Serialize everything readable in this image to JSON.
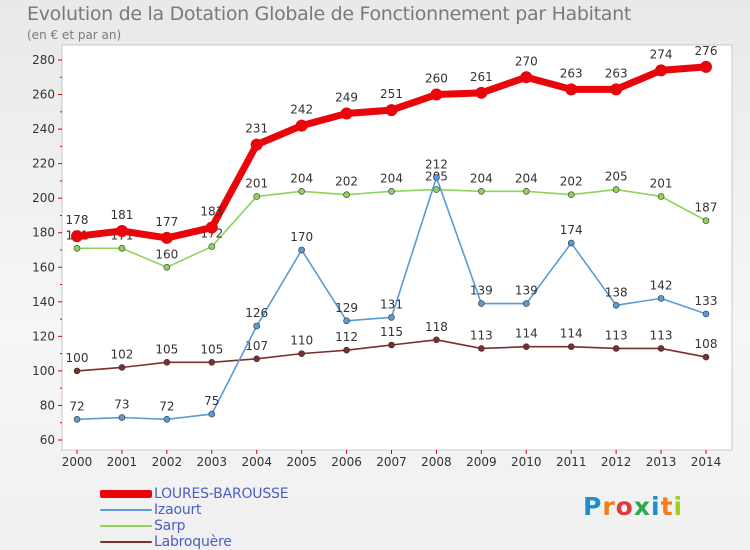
{
  "title": "Evolution de la Dotation Globale de Fonctionnement par Habitant",
  "subtitle": "(en € et par an)",
  "logo": {
    "letters": [
      "P",
      "r",
      "o",
      "x",
      "i",
      "t",
      "i"
    ],
    "colors": [
      "#1b8fd1",
      "#f07f1b",
      "#e23a3a",
      "#2aa84a",
      "#1b8fd1",
      "#f07f1b",
      "#9ad11b"
    ]
  },
  "chart_data": {
    "type": "line",
    "title": "Evolution de la Dotation Globale de Fonctionnement par Habitant",
    "ylabel": "(en € et par an)",
    "xlabel": "",
    "x": [
      "2000",
      "2001",
      "2002",
      "2003",
      "2004",
      "2005",
      "2006",
      "2007",
      "2008",
      "2009",
      "2010",
      "2011",
      "2012",
      "2013",
      "2014"
    ],
    "ylim": [
      60,
      280
    ],
    "yticks": [
      60,
      80,
      100,
      120,
      140,
      160,
      180,
      200,
      220,
      240,
      260,
      280
    ],
    "grid": false,
    "legend_position": "bottom-left",
    "series": [
      {
        "name": "Sarp",
        "color": "#8fd35a",
        "values": [
          171,
          171,
          160,
          172,
          201,
          204,
          202,
          204,
          205,
          204,
          204,
          202,
          205,
          201,
          187
        ],
        "labels": [
          "171",
          "171",
          "160",
          "172",
          "201",
          "204",
          "202",
          "204",
          "205",
          "204",
          "204",
          "202",
          "205",
          "201",
          "187"
        ]
      },
      {
        "name": "Labroquère",
        "color": "#7a2f2f",
        "values": [
          100,
          102,
          105,
          105,
          107,
          110,
          112,
          115,
          118,
          113,
          114,
          114,
          113,
          113,
          108
        ],
        "labels": [
          "100",
          "102",
          "105",
          "105",
          "107",
          "110",
          "112",
          "115",
          "118",
          "113",
          "114",
          "114",
          "113",
          "113",
          "108"
        ]
      },
      {
        "name": "Izaourt",
        "color": "#5b9bd5",
        "values": [
          72,
          73,
          72,
          75,
          126,
          170,
          129,
          131,
          212,
          139,
          139,
          174,
          138,
          142,
          133
        ],
        "labels": [
          "72",
          "73",
          "72",
          "75",
          "126",
          "170",
          "129",
          "131",
          "212",
          "139",
          "139",
          "174",
          "138",
          "142",
          "133"
        ]
      },
      {
        "name": "LOURES-BAROUSSE",
        "color": "#e8060a",
        "values": [
          178,
          181,
          177,
          183,
          231,
          242,
          249,
          251,
          260,
          261,
          270,
          263,
          263,
          274,
          276
        ],
        "labels": [
          "178",
          "181",
          "177",
          "183",
          "231",
          "242",
          "249",
          "251",
          "260",
          "261",
          "270",
          "263",
          "263",
          "274",
          "276"
        ]
      }
    ]
  },
  "legend": [
    {
      "name": "LOURES-BAROUSSE",
      "color": "#e8060a",
      "thickness": 8
    },
    {
      "name": "Izaourt",
      "color": "#5b9bd5",
      "thickness": 2
    },
    {
      "name": "Sarp",
      "color": "#8fd35a",
      "thickness": 2
    },
    {
      "name": "Labroquère",
      "color": "#7a2f2f",
      "thickness": 2
    }
  ]
}
